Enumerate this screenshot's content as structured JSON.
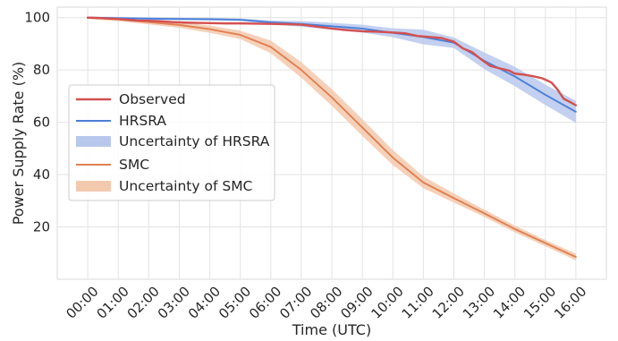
{
  "chart_data": {
    "type": "line",
    "xlabel": "Time (UTC)",
    "ylabel": "Power Supply Rate (%)",
    "x": [
      "00:00",
      "01:00",
      "02:00",
      "03:00",
      "04:00",
      "05:00",
      "06:00",
      "07:00",
      "08:00",
      "09:00",
      "10:00",
      "11:00",
      "12:00",
      "13:00",
      "14:00",
      "15:00",
      "16:00"
    ],
    "ylim": [
      0,
      104
    ],
    "yticks": [
      20,
      40,
      60,
      80,
      100
    ],
    "grid": true,
    "legend_position": "center-left",
    "series": [
      {
        "name": "Observed",
        "color": "#d45050",
        "points": [
          [
            0,
            100
          ],
          [
            0.5,
            99.8
          ],
          [
            1,
            99.5
          ],
          [
            1.3,
            99.2
          ],
          [
            1.6,
            98.9
          ],
          [
            2,
            98.8
          ],
          [
            2.4,
            98.6
          ],
          [
            2.8,
            98.3
          ],
          [
            3.2,
            98.1
          ],
          [
            3.6,
            98.0
          ],
          [
            4,
            97.9
          ],
          [
            4.5,
            97.8
          ],
          [
            5,
            97.8
          ],
          [
            5.5,
            97.7
          ],
          [
            6,
            97.6
          ],
          [
            6.5,
            97.5
          ],
          [
            7,
            97.3
          ],
          [
            7.5,
            96.6
          ],
          [
            8,
            95.8
          ],
          [
            8.5,
            95.2
          ],
          [
            9,
            94.8
          ],
          [
            9.5,
            94.6
          ],
          [
            10,
            94.3
          ],
          [
            10.4,
            94.0
          ],
          [
            10.8,
            93.0
          ],
          [
            11.2,
            92.6
          ],
          [
            11.6,
            92.2
          ],
          [
            12,
            90.8
          ],
          [
            12.3,
            88.2
          ],
          [
            12.6,
            86.8
          ],
          [
            12.9,
            84.0
          ],
          [
            13.2,
            81.5
          ],
          [
            13.5,
            80.6
          ],
          [
            13.8,
            79.8
          ],
          [
            14,
            78.6
          ],
          [
            14.3,
            78.2
          ],
          [
            14.6,
            77.6
          ],
          [
            14.9,
            76.8
          ],
          [
            15.2,
            75.2
          ],
          [
            15.4,
            72.5
          ],
          [
            15.6,
            69.0
          ],
          [
            15.8,
            67.8
          ],
          [
            16,
            66.5
          ]
        ]
      },
      {
        "name": "HRSRA",
        "color": "#4a7fd8",
        "points": [
          [
            0,
            100
          ],
          [
            1,
            99.8
          ],
          [
            2,
            99.6
          ],
          [
            3,
            99.5
          ],
          [
            4,
            99.4
          ],
          [
            5,
            99.2
          ],
          [
            6,
            98.2
          ],
          [
            7,
            97.6
          ],
          [
            8,
            96.7
          ],
          [
            9,
            95.8
          ],
          [
            10,
            94.2
          ],
          [
            11,
            92.6
          ],
          [
            12,
            90.4
          ],
          [
            13,
            83.5
          ],
          [
            14,
            77.5
          ],
          [
            15,
            70.5
          ],
          [
            16,
            64.0
          ]
        ]
      },
      {
        "name": "SMC",
        "color": "#e08050",
        "points": [
          [
            0,
            100
          ],
          [
            1,
            99.3
          ],
          [
            2,
            98.3
          ],
          [
            3,
            97.2
          ],
          [
            4,
            95.6
          ],
          [
            5,
            93.4
          ],
          [
            6,
            88.8
          ],
          [
            7,
            80.0
          ],
          [
            8,
            69.5
          ],
          [
            9,
            58.0
          ],
          [
            10,
            46.5
          ],
          [
            11,
            37.0
          ],
          [
            12,
            31.0
          ],
          [
            13,
            25.2
          ],
          [
            14,
            19.2
          ],
          [
            15,
            13.8
          ],
          [
            16,
            8.5
          ]
        ]
      }
    ],
    "bands": [
      {
        "name": "Uncertainty of HRSRA",
        "color": "#b8c8ec",
        "x": [
          0,
          1,
          2,
          3,
          4,
          5,
          6,
          7,
          8,
          9,
          10,
          11,
          12,
          13,
          14,
          15,
          16
        ],
        "lower": [
          99.5,
          99.3,
          99.1,
          99.0,
          98.9,
          98.7,
          97.5,
          96.5,
          95.4,
          94.3,
          92.5,
          89.8,
          88.4,
          80.3,
          73.8,
          66.6,
          59.8
        ],
        "upper": [
          100.4,
          100.3,
          100.1,
          100.0,
          99.9,
          99.7,
          98.9,
          98.7,
          98.0,
          97.3,
          95.9,
          95.4,
          92.4,
          86.7,
          81.2,
          74.4,
          68.2
        ]
      },
      {
        "name": "Uncertainty of SMC",
        "color": "#f3c9ae",
        "x": [
          0,
          1,
          2,
          3,
          4,
          5,
          6,
          7,
          8,
          9,
          10,
          11,
          12,
          13,
          14,
          15,
          16
        ],
        "lower": [
          99.5,
          98.6,
          97.4,
          96.1,
          94.2,
          91.8,
          86.4,
          77.0,
          66.3,
          54.8,
          43.6,
          34.8,
          29.3,
          23.8,
          17.9,
          12.6,
          7.2
        ],
        "upper": [
          100.3,
          99.9,
          99.2,
          98.3,
          97.0,
          95.0,
          91.2,
          83.0,
          72.7,
          61.2,
          49.4,
          39.3,
          32.8,
          26.6,
          20.5,
          15.0,
          9.8
        ]
      }
    ],
    "legend": [
      "Observed",
      "HRSRA",
      "Uncertainty of HRSRA",
      "SMC",
      "Uncertainty of SMC"
    ]
  }
}
